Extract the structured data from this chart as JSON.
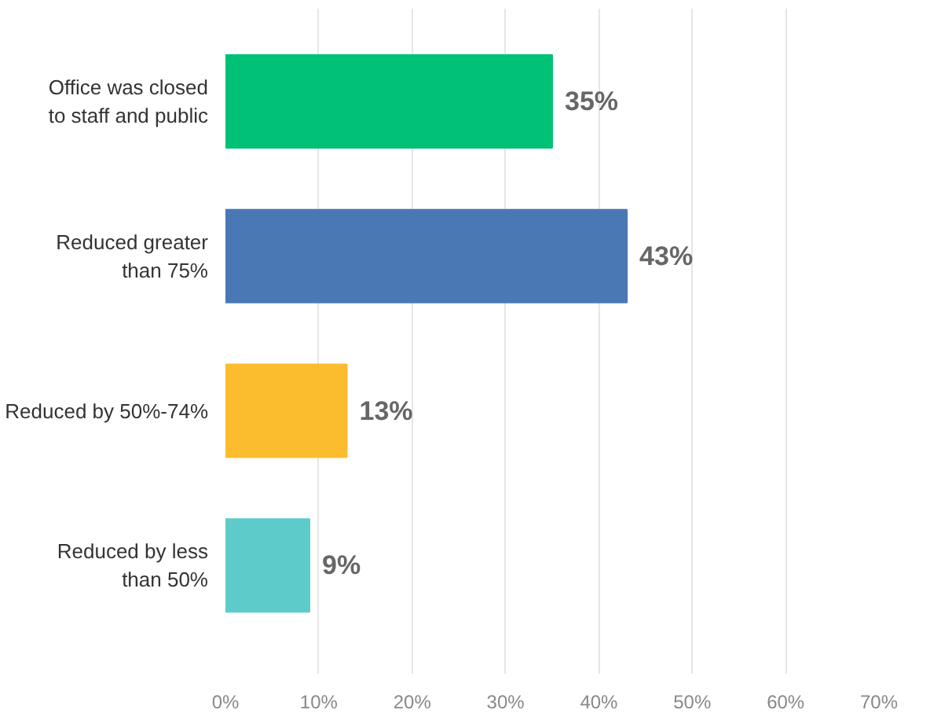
{
  "chart_data": {
    "type": "bar",
    "orientation": "horizontal",
    "categories": [
      "Office was closed to staff and public",
      "Reduced greater than 75%",
      "Reduced by 50%-74%",
      "Reduced by less than 50%"
    ],
    "values": [
      35,
      43,
      13,
      9
    ],
    "colors": [
      "#00c176",
      "#4a78b5",
      "#fbbd2e",
      "#5ecbcb"
    ],
    "value_labels": [
      "35%",
      "43%",
      "13%",
      "9%"
    ],
    "xlim": [
      0,
      70
    ],
    "xticks": [
      {
        "value": 0,
        "label": "0%"
      },
      {
        "value": 10,
        "label": "10%"
      },
      {
        "value": 20,
        "label": "20%"
      },
      {
        "value": 30,
        "label": "30%"
      },
      {
        "value": 40,
        "label": "40%"
      },
      {
        "value": 50,
        "label": "50%"
      },
      {
        "value": 60,
        "label": "60%"
      },
      {
        "value": 70,
        "label": "70%"
      }
    ],
    "grid": "x"
  }
}
